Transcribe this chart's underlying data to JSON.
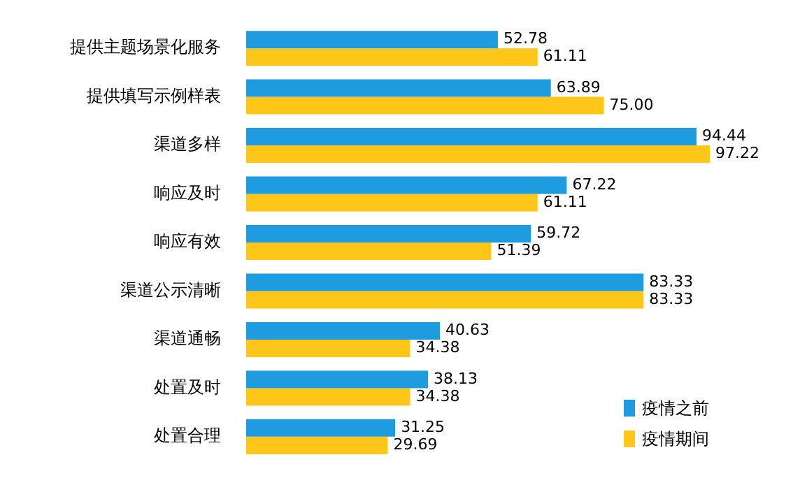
{
  "chart_data": {
    "type": "bar",
    "orientation": "horizontal",
    "legend": "bottom right",
    "categories": [
      "提供主题场景化服务",
      "提供填写示例样表",
      "渠道多样",
      "响应及时",
      "响应有效",
      "渠道公示清晰",
      "渠道通畅",
      "处置及时",
      "处置合理"
    ],
    "series": [
      {
        "name": "疫情之前",
        "color": "#1f9be0",
        "values": [
          52.78,
          63.89,
          94.44,
          67.22,
          59.72,
          83.33,
          40.63,
          38.13,
          31.25
        ],
        "value_labels": [
          "52.78",
          "63.89",
          "94.44",
          "67.22",
          "59.72",
          "83.33",
          "40.63",
          "38.13",
          "31.25"
        ]
      },
      {
        "name": "疫情期间",
        "color": "#ffc61a",
        "values": [
          61.11,
          75.0,
          97.22,
          61.11,
          51.39,
          83.33,
          34.38,
          34.38,
          29.69
        ],
        "value_labels": [
          "61.11",
          "75.00",
          "97.22",
          "61.11",
          "51.39",
          "83.33",
          "34.38",
          "34.38",
          "29.69"
        ]
      }
    ]
  }
}
